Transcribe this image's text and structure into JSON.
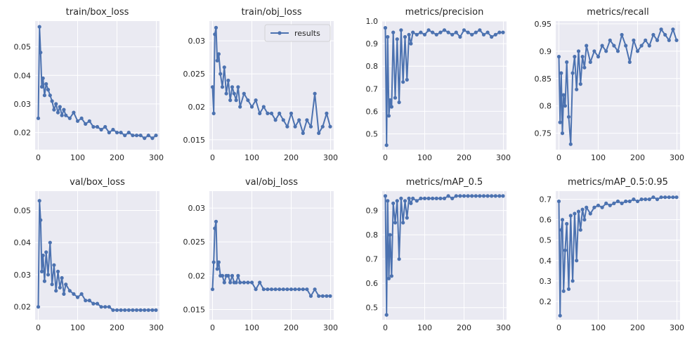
{
  "colors": {
    "series": "#4c72b0",
    "panel_bg": "#eaeaf2",
    "grid": "#ffffff"
  },
  "legend_label": "results",
  "chart_data": [
    {
      "type": "line",
      "title": "train/box_loss",
      "xlim": [
        0,
        300
      ],
      "ylim": [
        0.014,
        0.059
      ],
      "x_ticks": [
        0,
        100,
        200,
        300
      ],
      "y_ticks": [
        0.02,
        0.03,
        0.04,
        0.05
      ],
      "grid": true,
      "series": [
        {
          "x": [
            0,
            3,
            6,
            9,
            12,
            16,
            20,
            25,
            30,
            35,
            40,
            45,
            50,
            55,
            60,
            65,
            70,
            80,
            90,
            100,
            110,
            120,
            130,
            140,
            150,
            160,
            170,
            180,
            190,
            200,
            210,
            220,
            230,
            240,
            250,
            260,
            270,
            280,
            290,
            299
          ],
          "y": [
            0.025,
            0.057,
            0.048,
            0.036,
            0.039,
            0.033,
            0.037,
            0.035,
            0.033,
            0.031,
            0.028,
            0.03,
            0.027,
            0.029,
            0.026,
            0.028,
            0.026,
            0.025,
            0.027,
            0.024,
            0.025,
            0.023,
            0.024,
            0.022,
            0.022,
            0.021,
            0.022,
            0.02,
            0.021,
            0.02,
            0.02,
            0.019,
            0.02,
            0.019,
            0.019,
            0.019,
            0.018,
            0.019,
            0.018,
            0.019
          ]
        }
      ]
    },
    {
      "type": "line",
      "title": "train/obj_loss",
      "xlim": [
        0,
        300
      ],
      "ylim": [
        0.0135,
        0.033
      ],
      "x_ticks": [
        0,
        100,
        200,
        300
      ],
      "y_ticks": [
        0.015,
        0.02,
        0.025,
        0.03
      ],
      "grid": true,
      "legend": "top-right",
      "series": [
        {
          "name": "results",
          "x": [
            0,
            3,
            6,
            9,
            12,
            16,
            20,
            25,
            30,
            35,
            40,
            45,
            50,
            55,
            60,
            65,
            70,
            80,
            90,
            100,
            110,
            120,
            130,
            140,
            150,
            160,
            170,
            180,
            190,
            200,
            210,
            220,
            230,
            240,
            250,
            260,
            270,
            280,
            290,
            299
          ],
          "y": [
            0.023,
            0.019,
            0.031,
            0.032,
            0.027,
            0.028,
            0.025,
            0.023,
            0.026,
            0.022,
            0.024,
            0.021,
            0.023,
            0.022,
            0.021,
            0.023,
            0.02,
            0.022,
            0.021,
            0.02,
            0.021,
            0.019,
            0.02,
            0.019,
            0.019,
            0.018,
            0.019,
            0.018,
            0.017,
            0.019,
            0.017,
            0.018,
            0.016,
            0.018,
            0.017,
            0.022,
            0.016,
            0.017,
            0.019,
            0.017
          ]
        }
      ]
    },
    {
      "type": "line",
      "title": "metrics/precision",
      "xlim": [
        0,
        300
      ],
      "ylim": [
        0.43,
        1.0
      ],
      "x_ticks": [
        0,
        100,
        200,
        300
      ],
      "y_ticks": [
        0.5,
        0.6,
        0.7,
        0.8,
        0.9,
        1.0
      ],
      "grid": true,
      "series": [
        {
          "x": [
            0,
            3,
            6,
            9,
            12,
            16,
            20,
            25,
            30,
            35,
            40,
            45,
            50,
            55,
            60,
            65,
            70,
            80,
            90,
            100,
            110,
            120,
            130,
            140,
            150,
            160,
            170,
            180,
            190,
            200,
            210,
            220,
            230,
            240,
            250,
            260,
            270,
            280,
            290,
            299
          ],
          "y": [
            0.97,
            0.45,
            0.93,
            0.58,
            0.65,
            0.62,
            0.95,
            0.66,
            0.92,
            0.64,
            0.96,
            0.73,
            0.93,
            0.74,
            0.94,
            0.9,
            0.95,
            0.94,
            0.95,
            0.94,
            0.96,
            0.95,
            0.94,
            0.95,
            0.96,
            0.95,
            0.94,
            0.95,
            0.93,
            0.96,
            0.95,
            0.94,
            0.95,
            0.96,
            0.94,
            0.95,
            0.93,
            0.94,
            0.95,
            0.95
          ]
        }
      ]
    },
    {
      "type": "line",
      "title": "metrics/recall",
      "xlim": [
        0,
        300
      ],
      "ylim": [
        0.72,
        0.955
      ],
      "x_ticks": [
        0,
        100,
        200,
        300
      ],
      "y_ticks": [
        0.75,
        0.8,
        0.85,
        0.9,
        0.95
      ],
      "grid": true,
      "series": [
        {
          "x": [
            0,
            3,
            6,
            9,
            12,
            16,
            20,
            25,
            30,
            35,
            40,
            45,
            50,
            55,
            60,
            65,
            70,
            80,
            90,
            100,
            110,
            120,
            130,
            140,
            150,
            160,
            170,
            180,
            190,
            200,
            210,
            220,
            230,
            240,
            250,
            260,
            270,
            280,
            290,
            299
          ],
          "y": [
            0.89,
            0.77,
            0.86,
            0.75,
            0.82,
            0.8,
            0.88,
            0.78,
            0.73,
            0.86,
            0.89,
            0.83,
            0.9,
            0.84,
            0.89,
            0.87,
            0.91,
            0.88,
            0.9,
            0.89,
            0.91,
            0.9,
            0.92,
            0.91,
            0.9,
            0.93,
            0.91,
            0.88,
            0.92,
            0.9,
            0.91,
            0.92,
            0.91,
            0.93,
            0.92,
            0.94,
            0.93,
            0.92,
            0.94,
            0.92
          ]
        }
      ]
    },
    {
      "type": "line",
      "title": "val/box_loss",
      "xlim": [
        0,
        300
      ],
      "ylim": [
        0.016,
        0.056
      ],
      "x_ticks": [
        0,
        100,
        200,
        300
      ],
      "y_ticks": [
        0.02,
        0.03,
        0.04,
        0.05
      ],
      "grid": true,
      "series": [
        {
          "x": [
            0,
            3,
            6,
            9,
            12,
            16,
            20,
            25,
            30,
            35,
            40,
            45,
            50,
            55,
            60,
            65,
            70,
            80,
            90,
            100,
            110,
            120,
            130,
            140,
            150,
            160,
            170,
            180,
            190,
            200,
            210,
            220,
            230,
            240,
            250,
            260,
            270,
            280,
            290,
            299
          ],
          "y": [
            0.02,
            0.053,
            0.047,
            0.031,
            0.036,
            0.028,
            0.037,
            0.03,
            0.04,
            0.027,
            0.033,
            0.025,
            0.031,
            0.026,
            0.029,
            0.024,
            0.027,
            0.025,
            0.024,
            0.023,
            0.024,
            0.022,
            0.022,
            0.021,
            0.021,
            0.02,
            0.02,
            0.02,
            0.019,
            0.019,
            0.019,
            0.019,
            0.019,
            0.019,
            0.019,
            0.019,
            0.019,
            0.019,
            0.019,
            0.019
          ]
        }
      ]
    },
    {
      "type": "line",
      "title": "val/obj_loss",
      "xlim": [
        0,
        300
      ],
      "ylim": [
        0.0135,
        0.0325
      ],
      "x_ticks": [
        0,
        100,
        200,
        300
      ],
      "y_ticks": [
        0.015,
        0.02,
        0.025,
        0.03
      ],
      "grid": true,
      "series": [
        {
          "x": [
            0,
            3,
            6,
            9,
            12,
            16,
            20,
            25,
            30,
            35,
            40,
            45,
            50,
            55,
            60,
            65,
            70,
            80,
            90,
            100,
            110,
            120,
            130,
            140,
            150,
            160,
            170,
            180,
            190,
            200,
            210,
            220,
            230,
            240,
            250,
            260,
            270,
            280,
            290,
            299
          ],
          "y": [
            0.018,
            0.022,
            0.027,
            0.028,
            0.021,
            0.022,
            0.02,
            0.02,
            0.019,
            0.02,
            0.02,
            0.019,
            0.02,
            0.019,
            0.019,
            0.02,
            0.019,
            0.019,
            0.019,
            0.019,
            0.018,
            0.019,
            0.018,
            0.018,
            0.018,
            0.018,
            0.018,
            0.018,
            0.018,
            0.018,
            0.018,
            0.018,
            0.018,
            0.018,
            0.017,
            0.018,
            0.017,
            0.017,
            0.017,
            0.017
          ]
        }
      ]
    },
    {
      "type": "line",
      "title": "metrics/mAP_0.5",
      "xlim": [
        0,
        300
      ],
      "ylim": [
        0.45,
        0.98
      ],
      "x_ticks": [
        0,
        100,
        200,
        300
      ],
      "y_ticks": [
        0.5,
        0.6,
        0.7,
        0.8,
        0.9
      ],
      "grid": true,
      "series": [
        {
          "x": [
            0,
            3,
            6,
            9,
            12,
            16,
            20,
            25,
            30,
            35,
            40,
            45,
            50,
            55,
            60,
            65,
            70,
            80,
            90,
            100,
            110,
            120,
            130,
            140,
            150,
            160,
            170,
            180,
            190,
            200,
            210,
            220,
            230,
            240,
            250,
            260,
            270,
            280,
            290,
            299
          ],
          "y": [
            0.96,
            0.47,
            0.94,
            0.62,
            0.8,
            0.63,
            0.93,
            0.85,
            0.94,
            0.7,
            0.95,
            0.85,
            0.94,
            0.87,
            0.95,
            0.93,
            0.95,
            0.94,
            0.95,
            0.95,
            0.95,
            0.95,
            0.95,
            0.95,
            0.95,
            0.96,
            0.95,
            0.96,
            0.96,
            0.96,
            0.96,
            0.96,
            0.96,
            0.96,
            0.96,
            0.96,
            0.96,
            0.96,
            0.96,
            0.96
          ]
        }
      ]
    },
    {
      "type": "line",
      "title": "metrics/mAP_0.5:0.95",
      "xlim": [
        0,
        300
      ],
      "ylim": [
        0.11,
        0.74
      ],
      "x_ticks": [
        0,
        100,
        200,
        300
      ],
      "y_ticks": [
        0.2,
        0.3,
        0.4,
        0.5,
        0.6,
        0.7
      ],
      "grid": true,
      "series": [
        {
          "x": [
            0,
            3,
            6,
            9,
            12,
            16,
            20,
            25,
            30,
            35,
            40,
            45,
            50,
            55,
            60,
            65,
            70,
            80,
            90,
            100,
            110,
            120,
            130,
            140,
            150,
            160,
            170,
            180,
            190,
            200,
            210,
            220,
            230,
            240,
            250,
            260,
            270,
            280,
            290,
            299
          ],
          "y": [
            0.69,
            0.13,
            0.55,
            0.6,
            0.25,
            0.45,
            0.58,
            0.26,
            0.62,
            0.3,
            0.63,
            0.4,
            0.64,
            0.55,
            0.65,
            0.6,
            0.66,
            0.63,
            0.66,
            0.67,
            0.66,
            0.68,
            0.67,
            0.68,
            0.69,
            0.68,
            0.69,
            0.69,
            0.7,
            0.69,
            0.7,
            0.7,
            0.7,
            0.71,
            0.7,
            0.71,
            0.71,
            0.71,
            0.71,
            0.71
          ]
        }
      ]
    }
  ]
}
